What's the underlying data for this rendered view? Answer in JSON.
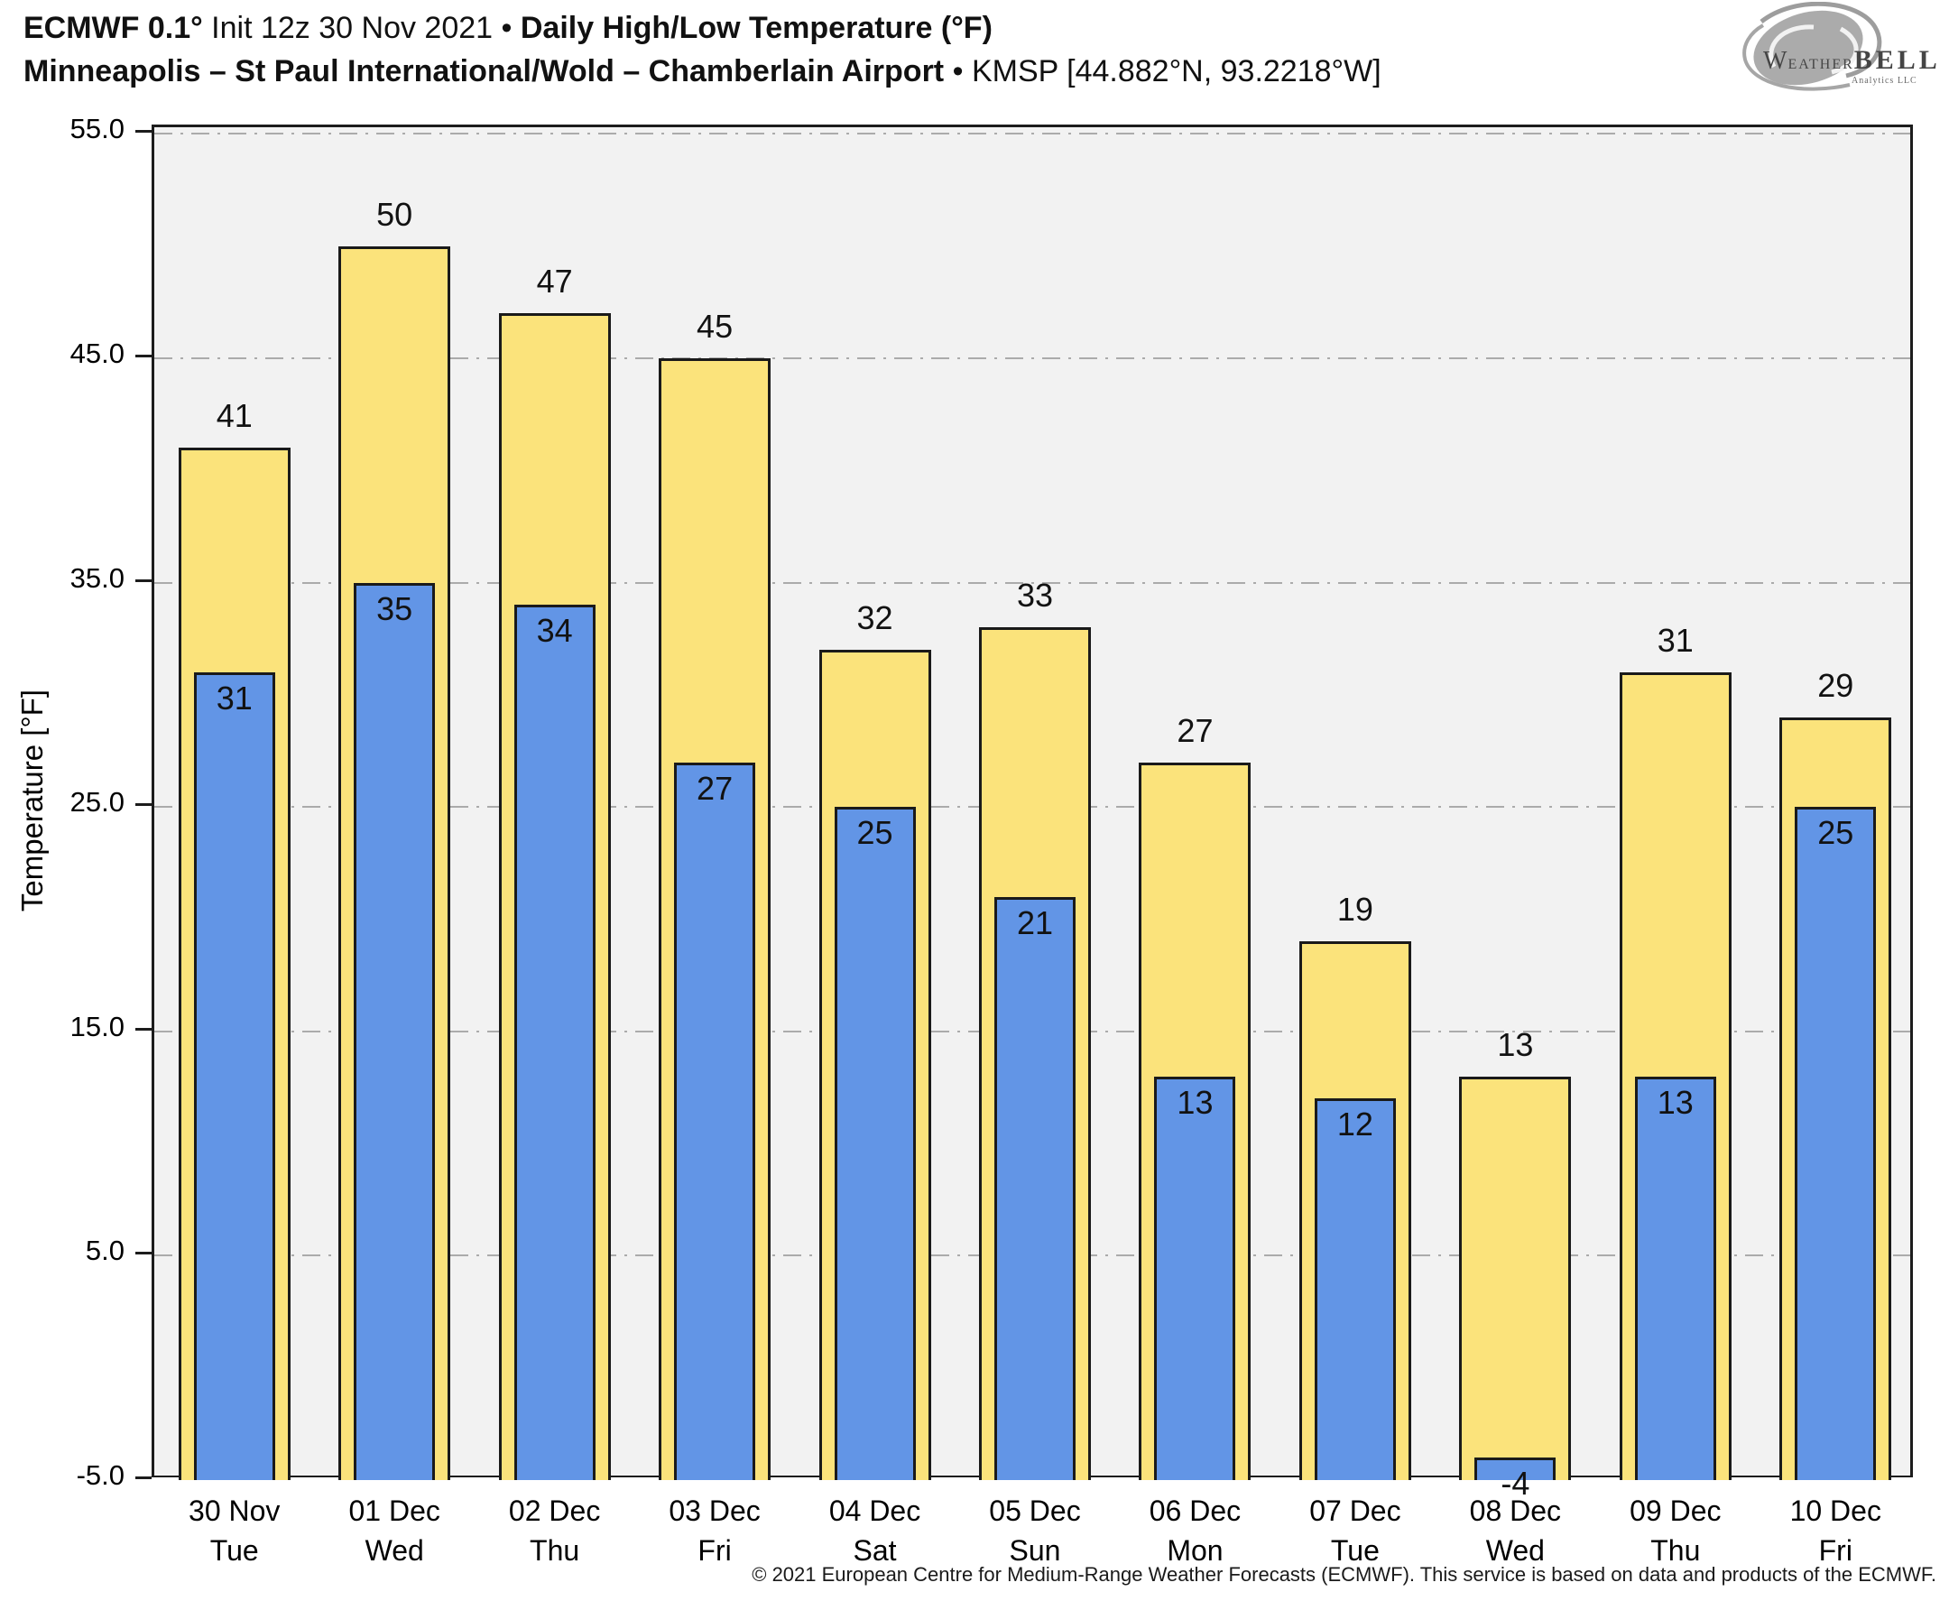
{
  "header": {
    "title_model": "ECMWF 0.1°",
    "title_init": " Init 12z 30 Nov 2021 ",
    "title_sep": "• ",
    "title_product": "Daily High/Low Temperature (°F)",
    "subtitle_station": "Minneapolis – St Paul International/Wold – Chamberlain Airport ",
    "subtitle_sep": "• ",
    "subtitle_id": "KMSP [44.882°N, 93.2218°W]"
  },
  "logo": {
    "name_w": "W",
    "name_eather": "EATHER",
    "name_bell": "BELL",
    "tagline": "Analytics LLC"
  },
  "footer": {
    "copyright": "© 2021 European Centre for Medium-Range Weather Forecasts (ECMWF). This service is based on data and products of the ECMWF."
  },
  "chart_data": {
    "type": "bar",
    "title": "ECMWF 0.1° Init 12z 30 Nov 2021 • Daily High/Low Temperature (°F)",
    "subtitle": "Minneapolis – St Paul International/Wold – Chamberlain Airport • KMSP [44.882°N, 93.2218°W]",
    "xlabel": "",
    "ylabel": "Temperature [°F]",
    "ylim": [
      -5,
      55
    ],
    "yticks": [
      55,
      45,
      35,
      25,
      15,
      5,
      -5
    ],
    "ytick_labels": [
      "55.0",
      "45.0",
      "35.0",
      "25.0",
      "15.0",
      "5.0",
      "-5.0"
    ],
    "grid": true,
    "legend_position": "none",
    "categories_date": [
      "30 Nov",
      "01 Dec",
      "02 Dec",
      "03 Dec",
      "04 Dec",
      "05 Dec",
      "06 Dec",
      "07 Dec",
      "08 Dec",
      "09 Dec",
      "10 Dec"
    ],
    "categories_day": [
      "Tue",
      "Wed",
      "Thu",
      "Fri",
      "Sat",
      "Sun",
      "Mon",
      "Tue",
      "Wed",
      "Thu",
      "Fri"
    ],
    "series": [
      {
        "name": "Daily High",
        "color": "#fbe37b",
        "values": [
          41,
          50,
          47,
          45,
          32,
          33,
          27,
          19,
          13,
          31,
          29
        ]
      },
      {
        "name": "Daily Low",
        "color": "#6295e6",
        "values": [
          31,
          35,
          34,
          27,
          25,
          21,
          13,
          12,
          -4,
          13,
          25
        ]
      }
    ]
  },
  "colors": {
    "plot_bg": "#f2f2f2",
    "grid": "#ababab",
    "bar_border": "#1a1a1a",
    "high_bar": "#fbe37b",
    "low_bar": "#6295e6",
    "text": "#111111"
  }
}
